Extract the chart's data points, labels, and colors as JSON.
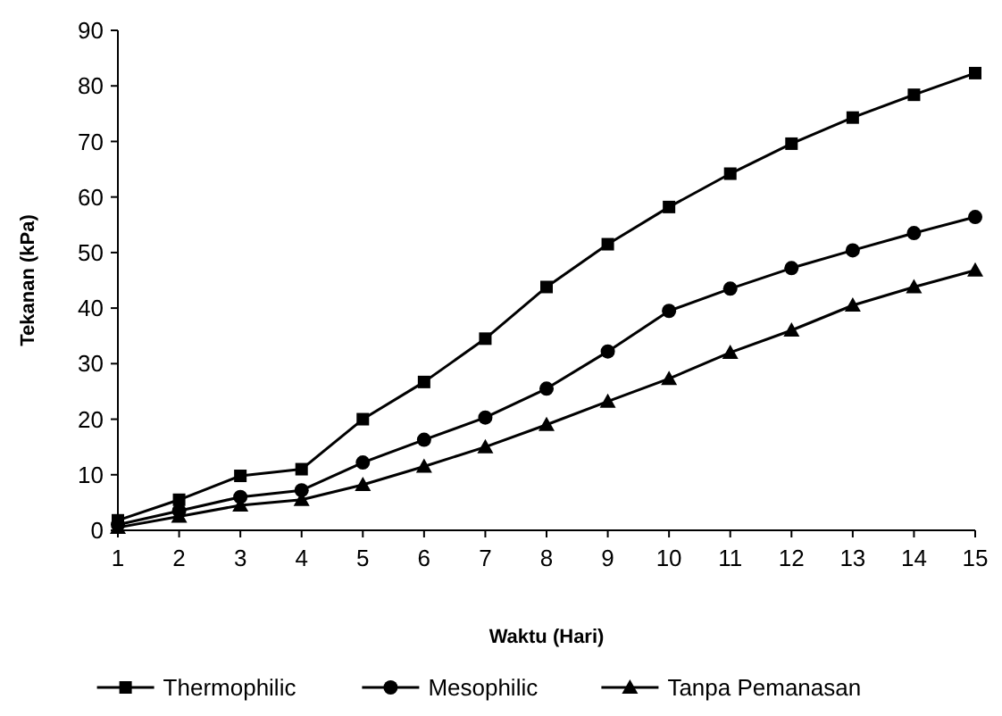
{
  "chart_data": {
    "type": "line",
    "xlabel": "Waktu (Hari)",
    "ylabel": "Tekanan (kPa)",
    "x": [
      1,
      2,
      3,
      4,
      5,
      6,
      7,
      8,
      9,
      10,
      11,
      12,
      13,
      14,
      15
    ],
    "xlim": [
      1,
      15
    ],
    "xticks": [
      1,
      2,
      3,
      4,
      5,
      6,
      7,
      8,
      9,
      10,
      11,
      12,
      13,
      14,
      15
    ],
    "ylim": [
      0,
      90
    ],
    "yticks": [
      0,
      10,
      20,
      30,
      40,
      50,
      60,
      70,
      80,
      90
    ],
    "grid": false,
    "legend": "bottom",
    "line_style": "solid",
    "series": [
      {
        "name": "Thermophilic",
        "color": "#000000",
        "marker": "square",
        "values": [
          1.8,
          5.5,
          9.8,
          11,
          20,
          26.7,
          34.5,
          43.8,
          51.5,
          58.2,
          64.2,
          69.6,
          74.3,
          78.4,
          82.3
        ]
      },
      {
        "name": "Mesophilic",
        "color": "#000000",
        "marker": "circle",
        "values": [
          1,
          3.5,
          6,
          7.2,
          12.2,
          16.3,
          20.3,
          25.5,
          32.2,
          39.5,
          43.5,
          47.2,
          50.4,
          53.5,
          56.4
        ]
      },
      {
        "name": "Tanpa Pemanasan",
        "color": "#000000",
        "marker": "triangle",
        "values": [
          0.5,
          2.5,
          4.5,
          5.5,
          8.2,
          11.5,
          15,
          19,
          23.2,
          27.3,
          32,
          36,
          40.5,
          43.8,
          46.8
        ]
      }
    ]
  }
}
